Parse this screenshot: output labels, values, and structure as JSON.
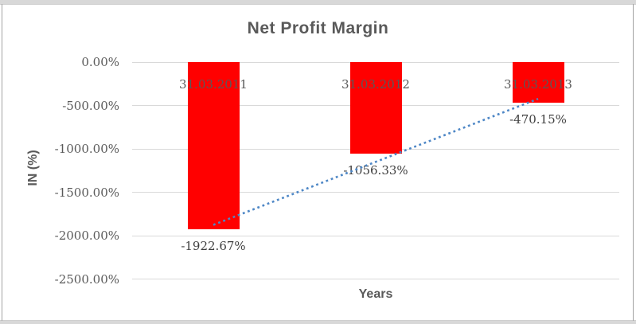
{
  "chart_data": {
    "type": "bar",
    "title": "Net Profit Margin",
    "xlabel": "Years",
    "ylabel": "IN (%)",
    "categories": [
      "31.03.2011",
      "31.03.2012",
      "31.03.2013"
    ],
    "values": [
      -1922.67,
      -1056.33,
      -470.15
    ],
    "data_labels": [
      "-1922.67%",
      "-1056.33%",
      "-470.15%"
    ],
    "yticks": [
      {
        "label": "0.00%",
        "value": 0
      },
      {
        "label": "-500.00%",
        "value": -500
      },
      {
        "label": "-1000.00%",
        "value": -1000
      },
      {
        "label": "-1500.00%",
        "value": -1500
      },
      {
        "label": "-2000.00%",
        "value": -2000
      },
      {
        "label": "-2500.00%",
        "value": -2500
      }
    ],
    "ylim": [
      -2500,
      0
    ],
    "grid": true,
    "legend": "none",
    "trendline": {
      "type": "linear",
      "style": "dotted"
    },
    "colors": {
      "bar": "#ff0000",
      "trendline": "#4e87c6",
      "gridline": "#d9d9d9",
      "title_text": "#595959",
      "axis_title_text": "#595959",
      "tick_text": "#595959",
      "category_text": "#595959",
      "data_label_text": "#3f3f3f"
    }
  }
}
